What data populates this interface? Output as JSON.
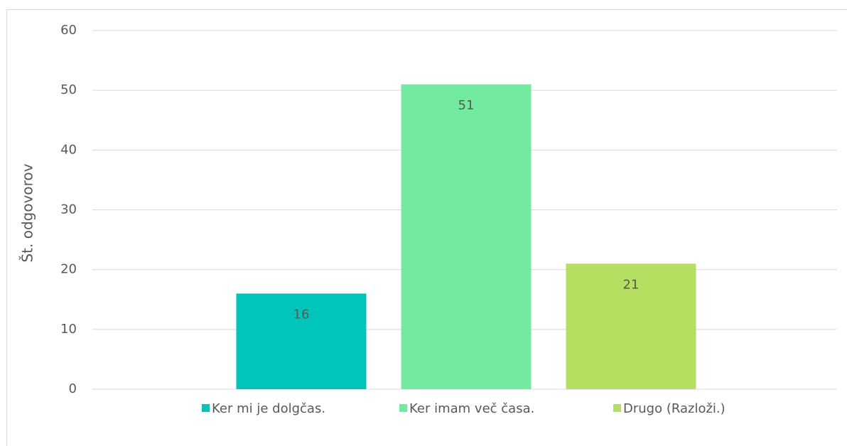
{
  "chart_data": {
    "type": "bar",
    "y_label": "Št. odgovorov",
    "categories": [
      null
    ],
    "series": [
      {
        "name": "Ker mi je dolgčas.",
        "color": "#00c5b9",
        "values": [
          16
        ]
      },
      {
        "name": "Ker imam več časa.",
        "color": "#72eba0",
        "values": [
          51
        ]
      },
      {
        "name": "Drugo (Razloži.)",
        "color": "#b5df5f",
        "values": [
          21
        ]
      }
    ],
    "ylim": [
      0,
      60
    ],
    "yticks": [
      0,
      10,
      20,
      30,
      40,
      50,
      60
    ],
    "grid": true,
    "legend": "bottom",
    "data_labels": true
  }
}
